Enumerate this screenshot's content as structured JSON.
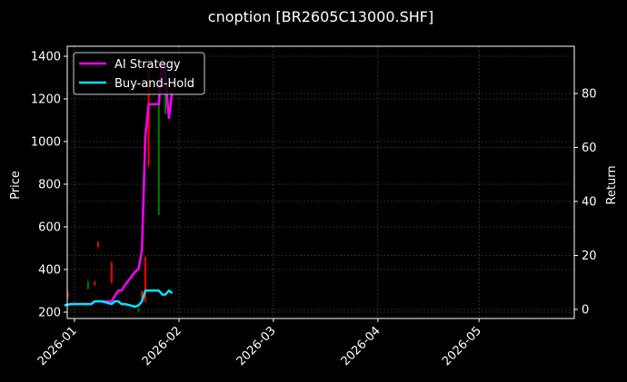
{
  "chart_data": {
    "type": "line",
    "title": "cnoption [BR2605C13000.SHF]",
    "xlabel": "",
    "ylabel": "Price",
    "y2label": "Return",
    "background": "#000000",
    "grid": true,
    "legend_position": "upper left",
    "x_ticks": [
      "2026-01",
      "2026-02",
      "2026-03",
      "2026-04",
      "2026-05"
    ],
    "y_ticks": [
      200,
      400,
      600,
      800,
      1000,
      1200,
      1400
    ],
    "y2_ticks": [
      0,
      20,
      40,
      60,
      80
    ],
    "ylim": [
      170,
      1445
    ],
    "y2lim": [
      -3,
      97
    ],
    "xlim": [
      "2025-12-29",
      "2026-05-30"
    ],
    "series": [
      {
        "name": "AI Strategy",
        "axis": "return",
        "color": "#ff00ff",
        "x": [
          "2025-12-29",
          "2025-12-31",
          "2026-01-05",
          "2026-01-06",
          "2026-01-07",
          "2026-01-08",
          "2026-01-09",
          "2026-01-12",
          "2026-01-13",
          "2026-01-14",
          "2026-01-15",
          "2026-01-16",
          "2026-01-19",
          "2026-01-20",
          "2026-01-21",
          "2026-01-22",
          "2026-01-23",
          "2026-01-26",
          "2026-01-27",
          "2026-01-28",
          "2026-01-29",
          "2026-01-30"
        ],
        "values": [
          1.5,
          2,
          2,
          2,
          3,
          3,
          3,
          3,
          5,
          7,
          7,
          9,
          14,
          15,
          22,
          64,
          76,
          76,
          93,
          85,
          71,
          81
        ]
      },
      {
        "name": "Buy-and-Hold",
        "axis": "return",
        "color": "#00e5ff",
        "x": [
          "2025-12-29",
          "2025-12-31",
          "2026-01-05",
          "2026-01-06",
          "2026-01-07",
          "2026-01-08",
          "2026-01-09",
          "2026-01-12",
          "2026-01-13",
          "2026-01-14",
          "2026-01-15",
          "2026-01-16",
          "2026-01-19",
          "2026-01-20",
          "2026-01-21",
          "2026-01-22",
          "2026-01-23",
          "2026-01-26",
          "2026-01-27",
          "2026-01-28",
          "2026-01-29",
          "2026-01-30"
        ],
        "values": [
          1.5,
          2,
          2,
          2,
          3,
          3,
          3,
          2,
          3,
          3,
          2,
          2,
          1,
          1.5,
          3,
          7,
          7,
          7,
          5.5,
          5.5,
          7,
          6
        ]
      }
    ],
    "candles": [
      {
        "date": "2025-12-30",
        "open": 290,
        "close": 270,
        "high": 300,
        "low": 265,
        "color": "#ff0000"
      },
      {
        "date": "2026-01-05",
        "open": 340,
        "close": 310,
        "high": 355,
        "low": 305,
        "color": "#008000"
      },
      {
        "date": "2026-01-07",
        "open": 345,
        "close": 325,
        "high": 345,
        "low": 325,
        "color": "#ff0000"
      },
      {
        "date": "2026-01-08",
        "open": 530,
        "close": 505,
        "high": 530,
        "low": 505,
        "color": "#ff0000"
      },
      {
        "date": "2026-01-12",
        "open": 435,
        "close": 335,
        "high": 435,
        "low": 335,
        "color": "#ff0000"
      },
      {
        "date": "2026-01-20",
        "open": 215,
        "close": 205,
        "high": 220,
        "low": 200,
        "color": "#008000"
      },
      {
        "date": "2026-01-21",
        "open": 300,
        "close": 250,
        "high": 300,
        "low": 245,
        "color": "#ff0000"
      },
      {
        "date": "2026-01-22",
        "open": 460,
        "close": 250,
        "high": 460,
        "low": 245,
        "color": "#ff0000"
      },
      {
        "date": "2026-01-23",
        "open": 1330,
        "close": 890,
        "high": 1335,
        "low": 880,
        "color": "#ff0000"
      },
      {
        "date": "2026-01-26",
        "open": 655,
        "close": 1200,
        "high": 1210,
        "low": 655,
        "color": "#008000"
      },
      {
        "date": "2026-01-28",
        "open": 1130,
        "close": 1350,
        "high": 1360,
        "low": 1130,
        "color": "#008000"
      }
    ]
  }
}
